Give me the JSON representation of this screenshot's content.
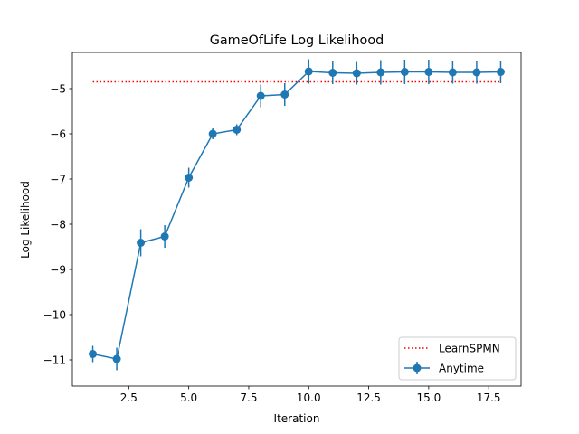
{
  "chart_data": {
    "type": "line",
    "title": "GameOfLife Log Likelihood",
    "xlabel": "Iteration",
    "ylabel": "Log Likelihood",
    "xlim": [
      0.15,
      18.85
    ],
    "ylim": [
      -11.58,
      -4.2
    ],
    "xticks": [
      2.5,
      5.0,
      7.5,
      10.0,
      12.5,
      15.0,
      17.5
    ],
    "xtick_labels": [
      "2.5",
      "5.0",
      "7.5",
      "10.0",
      "12.5",
      "15.0",
      "17.5"
    ],
    "yticks": [
      -11,
      -10,
      -9,
      -8,
      -7,
      -6,
      -5
    ],
    "ytick_labels": [
      "−11",
      "−10",
      "−9",
      "−8",
      "−7",
      "−6",
      "−5"
    ],
    "grid": false,
    "legend_position": "lower-right",
    "series": [
      {
        "name": "LearnSPMN",
        "style": "dotted",
        "color": "#ff0000",
        "x": [
          1,
          18
        ],
        "y": [
          -4.85,
          -4.85
        ]
      },
      {
        "name": "Anytime",
        "style": "line-with-markers-and-errorbars",
        "color": "#1f77b4",
        "x": [
          1,
          2,
          3,
          4,
          5,
          6,
          7,
          8,
          9,
          10,
          11,
          12,
          13,
          14,
          15,
          16,
          17,
          18
        ],
        "y": [
          -10.87,
          -10.98,
          -8.41,
          -8.27,
          -6.97,
          -6.0,
          -5.91,
          -5.16,
          -5.13,
          -4.62,
          -4.65,
          -4.66,
          -4.64,
          -4.63,
          -4.63,
          -4.64,
          -4.64,
          -4.63
        ],
        "yerr": [
          0.18,
          0.25,
          0.3,
          0.25,
          0.22,
          0.12,
          0.12,
          0.25,
          0.25,
          0.27,
          0.25,
          0.25,
          0.27,
          0.27,
          0.27,
          0.25,
          0.25,
          0.25
        ]
      }
    ]
  }
}
